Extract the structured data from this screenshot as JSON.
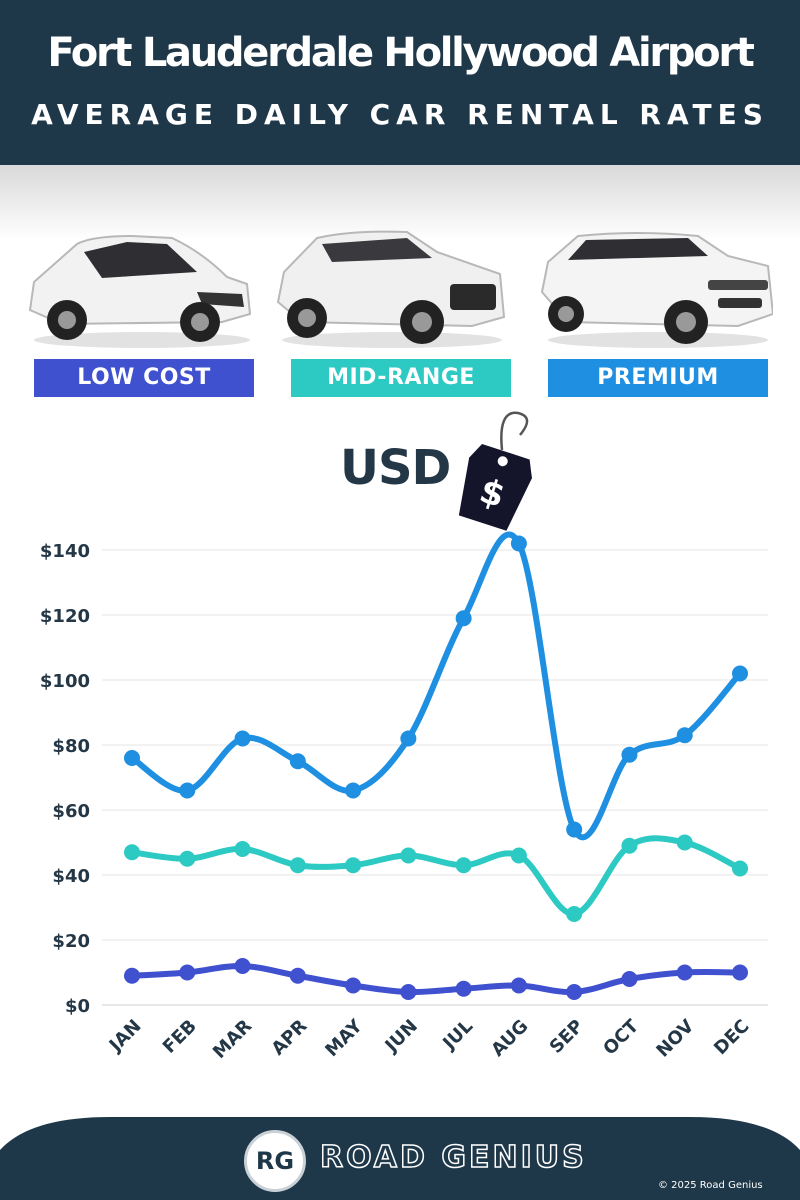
{
  "header": {
    "title": "Fort Lauderdale Hollywood Airport",
    "subtitle": "AVERAGE DAILY CAR RENTAL RATES"
  },
  "categories": [
    {
      "label": "LOW COST",
      "color": "#3f51cf"
    },
    {
      "label": "MID-RANGE",
      "color": "#2ccac3"
    },
    {
      "label": "PREMIUM",
      "color": "#1e8fe1"
    }
  ],
  "currency": {
    "label": "USD",
    "tag_symbol": "$"
  },
  "chart_data": {
    "type": "line",
    "categories": [
      "JAN",
      "FEB",
      "MAR",
      "APR",
      "MAY",
      "JUN",
      "JUL",
      "AUG",
      "SEP",
      "OCT",
      "NOV",
      "DEC"
    ],
    "series": [
      {
        "name": "LOW COST",
        "color": "#3f51cf",
        "values": [
          9,
          10,
          12,
          9,
          6,
          4,
          5,
          6,
          4,
          8,
          10,
          10
        ]
      },
      {
        "name": "MID-RANGE",
        "color": "#2ccac3",
        "values": [
          47,
          45,
          48,
          43,
          43,
          46,
          43,
          46,
          28,
          49,
          50,
          42
        ]
      },
      {
        "name": "PREMIUM",
        "color": "#1e8fe1",
        "values": [
          76,
          66,
          82,
          75,
          66,
          82,
          119,
          142,
          54,
          77,
          83,
          102
        ]
      }
    ],
    "yticks": [
      "$0",
      "$20",
      "$40",
      "$60",
      "$80",
      "$100",
      "$120",
      "$140"
    ],
    "ylim": [
      0,
      140
    ],
    "grid": true
  },
  "footer": {
    "logo_text": "RG",
    "brand": "ROAD GENIUS",
    "copyright": "© 2025 Road Genius",
    "color": "#1f3849"
  },
  "icons": [
    "car-low-cost-icon",
    "car-mid-range-icon",
    "car-premium-icon",
    "price-tag-icon"
  ]
}
